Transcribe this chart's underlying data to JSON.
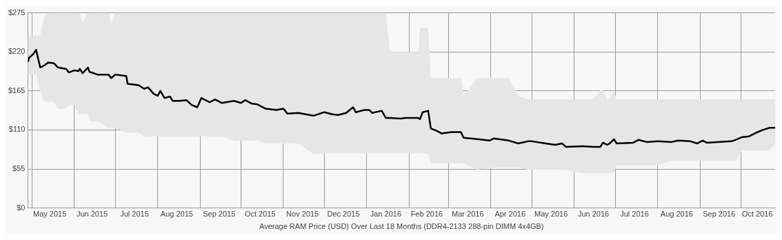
{
  "chart_data": {
    "type": "line",
    "xlabel": "Average RAM Price (USD) Over Last 18 Months (DDR4-2133 288-pin DIMM 4x4GB)",
    "x": [
      "2015-04-28",
      "2015-04-29",
      "2015-05-02",
      "2015-05-04",
      "2015-05-07",
      "2015-05-10",
      "2015-05-13",
      "2015-05-17",
      "2015-05-20",
      "2015-05-26",
      "2015-05-28",
      "2015-06-01",
      "2015-06-04",
      "2015-06-05",
      "2015-06-07",
      "2015-06-11",
      "2015-06-12",
      "2015-06-18",
      "2015-06-26",
      "2015-06-28",
      "2015-07-01",
      "2015-07-09",
      "2015-07-10",
      "2015-07-18",
      "2015-07-22",
      "2015-07-25",
      "2015-07-29",
      "2015-08-01",
      "2015-08-03",
      "2015-08-06",
      "2015-08-10",
      "2015-08-12",
      "2015-08-17",
      "2015-08-22",
      "2015-08-26",
      "2015-08-30",
      "2015-09-02",
      "2015-09-08",
      "2015-09-12",
      "2015-09-17",
      "2015-09-26",
      "2015-10-01",
      "2015-10-04",
      "2015-10-09",
      "2015-10-13",
      "2015-10-19",
      "2015-10-27",
      "2015-11-01",
      "2015-11-04",
      "2015-11-12",
      "2015-11-23",
      "2015-12-01",
      "2015-12-07",
      "2015-12-11",
      "2015-12-17",
      "2015-12-22",
      "2015-12-24",
      "2015-12-30",
      "2016-01-03",
      "2016-01-05",
      "2016-01-12",
      "2016-01-15",
      "2016-01-18",
      "2016-01-26",
      "2016-01-29",
      "2016-02-08",
      "2016-02-09",
      "2016-02-11",
      "2016-02-15",
      "2016-02-17",
      "2016-02-21",
      "2016-02-25",
      "2016-03-03",
      "2016-03-10",
      "2016-03-12",
      "2016-03-22",
      "2016-03-31",
      "2016-04-03",
      "2016-04-14",
      "2016-04-21",
      "2016-04-28",
      "2016-05-01",
      "2016-05-11",
      "2016-05-18",
      "2016-05-23",
      "2016-05-26",
      "2016-06-07",
      "2016-06-15",
      "2016-06-20",
      "2016-06-22",
      "2016-06-25",
      "2016-06-27",
      "2016-06-30",
      "2016-07-02",
      "2016-07-14",
      "2016-07-18",
      "2016-07-24",
      "2016-08-01",
      "2016-08-11",
      "2016-08-16",
      "2016-08-25",
      "2016-08-30",
      "2016-09-03",
      "2016-09-06",
      "2016-09-24",
      "2016-09-27",
      "2016-10-02",
      "2016-10-07",
      "2016-10-12",
      "2016-10-17",
      "2016-10-22",
      "2016-10-26"
    ],
    "series": [
      {
        "color": "#000000",
        "values": [
          206,
          212,
          217,
          223,
          198,
          201,
          205,
          204,
          198,
          196,
          191,
          194,
          193,
          196,
          190,
          198,
          192,
          188,
          188,
          183,
          188,
          186,
          175,
          173,
          168,
          170,
          161,
          158,
          165,
          155,
          157,
          151,
          151,
          152,
          145,
          142,
          155,
          149,
          153,
          148,
          151,
          148,
          152,
          147,
          146,
          140,
          138,
          140,
          133,
          134,
          130,
          135,
          132,
          131,
          134,
          142,
          135,
          138,
          138,
          134,
          137,
          127,
          127,
          126,
          127,
          127,
          125,
          135,
          137,
          112,
          109,
          105,
          107,
          107,
          99,
          97,
          95,
          98,
          95,
          91,
          94,
          94,
          91,
          89,
          91,
          86,
          87,
          86,
          86,
          92,
          89,
          91,
          97,
          91,
          92,
          96,
          93,
          94,
          93,
          95,
          94,
          91,
          95,
          92,
          94,
          96,
          100,
          101,
          106,
          110,
          113,
          113
        ],
        "lower": [
          188,
          188,
          188,
          188,
          164,
          150,
          150,
          150,
          140,
          140,
          145,
          145,
          132,
          132,
          132,
          132,
          122,
          122,
          113,
          113,
          113,
          106,
          106,
          106,
          101,
          101,
          101,
          101,
          101,
          101,
          101,
          101,
          101,
          101,
          101,
          101,
          101,
          101,
          101,
          101,
          95,
          95,
          95,
          95,
          95,
          91,
          91,
          91,
          91,
          91,
          76,
          77,
          77,
          77,
          77,
          77,
          77,
          77,
          77,
          77,
          77,
          77,
          77,
          77,
          77,
          77,
          77,
          77,
          77,
          63,
          63,
          63,
          63,
          63,
          63,
          54,
          57,
          57,
          57,
          57,
          54,
          54,
          54,
          54,
          54,
          54,
          49,
          49,
          49,
          49,
          49,
          49,
          49,
          60,
          60,
          60,
          60,
          60,
          67,
          67,
          67,
          67,
          67,
          67,
          67,
          67,
          81,
          81,
          81,
          81,
          81,
          90
        ],
        "upper": [
          243,
          243,
          243,
          243,
          243,
          270,
          275,
          275,
          275,
          275,
          275,
          275,
          275,
          275,
          260,
          275,
          275,
          275,
          275,
          260,
          275,
          275,
          275,
          275,
          275,
          275,
          275,
          275,
          275,
          275,
          275,
          275,
          275,
          275,
          275,
          275,
          275,
          275,
          275,
          275,
          275,
          275,
          275,
          275,
          275,
          275,
          275,
          275,
          275,
          275,
          275,
          275,
          275,
          275,
          275,
          275,
          275,
          275,
          275,
          275,
          275,
          275,
          220,
          220,
          220,
          220,
          254,
          254,
          254,
          183,
          183,
          183,
          183,
          183,
          158,
          183,
          183,
          183,
          183,
          158,
          153,
          153,
          153,
          153,
          153,
          153,
          153,
          153,
          166,
          166,
          153,
          153,
          166,
          153,
          153,
          153,
          153,
          153,
          153,
          153,
          153,
          153,
          153,
          153,
          153,
          153,
          153,
          153,
          153,
          153,
          153,
          153
        ]
      }
    ],
    "xlim": [
      "2015-04-28",
      "2016-10-26"
    ],
    "xticks": [
      {
        "value": "2015-05-01",
        "label": null
      },
      {
        "value": "2015-05-14",
        "label": "May 2015"
      },
      {
        "value": "2015-06-01",
        "label": null
      },
      {
        "value": "2015-06-14",
        "label": "Jun 2015"
      },
      {
        "value": "2015-07-01",
        "label": null
      },
      {
        "value": "2015-07-15",
        "label": "Jul 2015"
      },
      {
        "value": "2015-08-01",
        "label": null
      },
      {
        "value": "2015-08-15",
        "label": "Aug 2015"
      },
      {
        "value": "2015-09-01",
        "label": null
      },
      {
        "value": "2015-09-15",
        "label": "Sep 2015"
      },
      {
        "value": "2015-10-01",
        "label": null
      },
      {
        "value": "2015-10-15",
        "label": "Oct 2015"
      },
      {
        "value": "2015-11-01",
        "label": null
      },
      {
        "value": "2015-11-15",
        "label": "Nov 2015"
      },
      {
        "value": "2015-12-01",
        "label": null
      },
      {
        "value": "2015-12-15",
        "label": "Dec 2015"
      },
      {
        "value": "2016-01-01",
        "label": null
      },
      {
        "value": "2016-01-15",
        "label": "Jan 2016"
      },
      {
        "value": "2016-02-01",
        "label": null
      },
      {
        "value": "2016-02-14",
        "label": "Feb 2016"
      },
      {
        "value": "2016-03-01",
        "label": null
      },
      {
        "value": "2016-03-15",
        "label": "Mar 2016"
      },
      {
        "value": "2016-04-01",
        "label": null
      },
      {
        "value": "2016-04-15",
        "label": "Apr 2016"
      },
      {
        "value": "2016-05-01",
        "label": null
      },
      {
        "value": "2016-05-15",
        "label": "May 2016"
      },
      {
        "value": "2016-06-01",
        "label": null
      },
      {
        "value": "2016-06-15",
        "label": "Jun 2016"
      },
      {
        "value": "2016-07-01",
        "label": null
      },
      {
        "value": "2016-07-15",
        "label": "Jul 2016"
      },
      {
        "value": "2016-08-01",
        "label": null
      },
      {
        "value": "2016-08-15",
        "label": "Aug 2016"
      },
      {
        "value": "2016-09-01",
        "label": null
      },
      {
        "value": "2016-09-15",
        "label": "Sep 2016"
      },
      {
        "value": "2016-10-01",
        "label": null
      },
      {
        "value": "2016-10-13",
        "label": "Oct 2016"
      }
    ],
    "ylim": [
      0,
      275
    ],
    "yticks": [
      {
        "value": 0,
        "label": "$0"
      },
      {
        "value": 55,
        "label": "$55"
      },
      {
        "value": 110,
        "label": "$110"
      },
      {
        "value": 165,
        "label": "$165"
      },
      {
        "value": 220,
        "label": "$220"
      },
      {
        "value": 275,
        "label": "$275"
      }
    ],
    "grid": true,
    "legend": false,
    "marker": "none",
    "line_style": "solid"
  }
}
